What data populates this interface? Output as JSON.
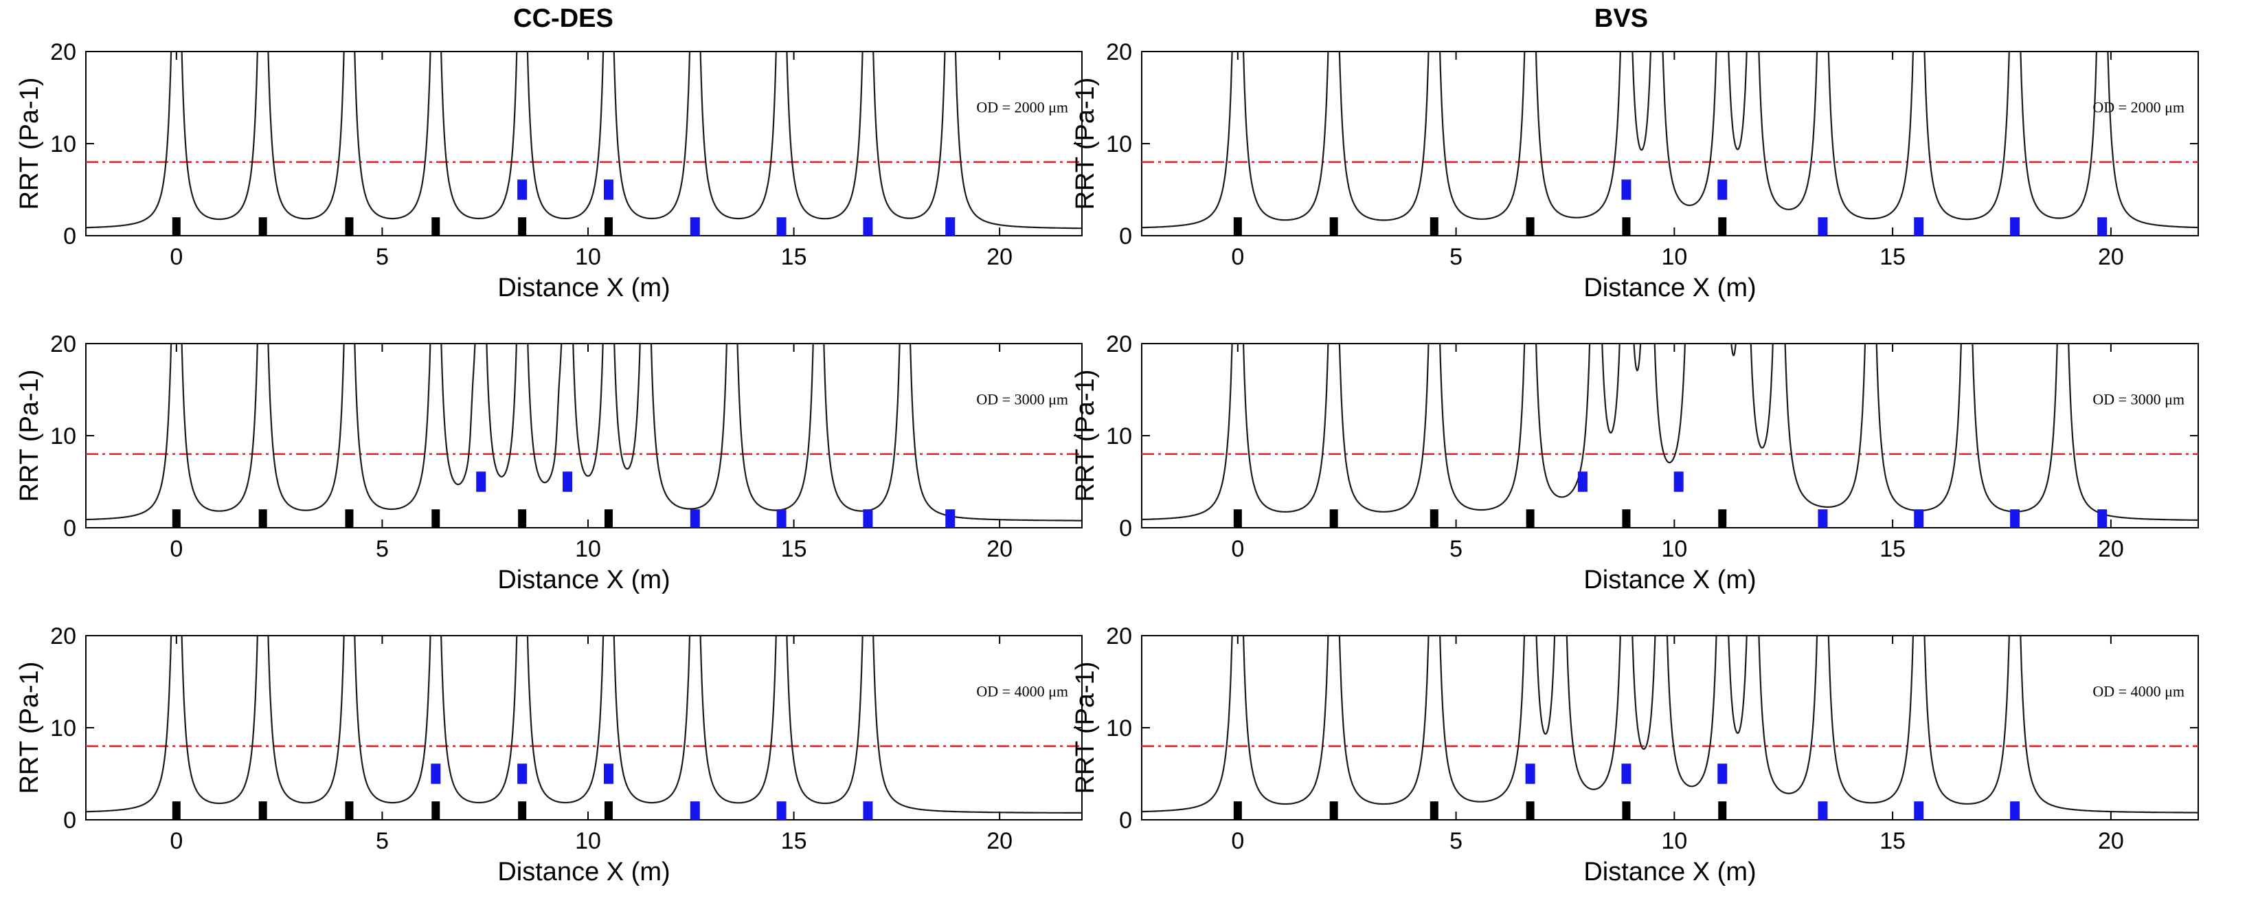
{
  "figure": {
    "col_titles": [
      "CC-DES",
      "BVS"
    ]
  },
  "chart_data": [
    {
      "type": "line",
      "column": "CC-DES",
      "od_label": "OD = 2000 μm",
      "xlabel": "Distance X (m)",
      "ylabel": "RRT (Pa-1)",
      "xlim": [
        -2.2,
        22
      ],
      "ylim": [
        0,
        20
      ],
      "xticks": [
        0,
        5,
        10,
        15,
        20
      ],
      "yticks": [
        0,
        10,
        20
      ],
      "threshold": 8,
      "black_markers": [
        0,
        2.1,
        4.2,
        6.3,
        8.4,
        10.5
      ],
      "blue_low": [
        12.6,
        14.7,
        16.8,
        18.8
      ],
      "blue_high": [
        8.4,
        10.5
      ],
      "blue_high_value": 5,
      "peaks": [
        0,
        2.1,
        4.2,
        6.3,
        8.4,
        10.5,
        12.6,
        14.7,
        16.8,
        18.8
      ],
      "small_bumps": []
    },
    {
      "type": "line",
      "column": "BVS",
      "od_label": "OD = 2000 μm",
      "xlabel": "Distance X (m)",
      "ylabel": "RRT (Pa-1)",
      "xlim": [
        -2.2,
        22
      ],
      "ylim": [
        0,
        20
      ],
      "xticks": [
        0,
        5,
        10,
        15,
        20
      ],
      "yticks": [
        0,
        10,
        20
      ],
      "threshold": 8,
      "black_markers": [
        0,
        2.2,
        4.5,
        6.7,
        8.9,
        11.1
      ],
      "blue_low": [
        13.4,
        15.6,
        17.8,
        19.8
      ],
      "blue_high": [
        8.9,
        11.1
      ],
      "blue_high_value": 5,
      "peaks": [
        0,
        2.2,
        4.5,
        6.7,
        8.9,
        9.6,
        11.1,
        11.8,
        13.4,
        15.6,
        17.8,
        19.8
      ],
      "small_bumps": []
    },
    {
      "type": "line",
      "column": "CC-DES",
      "od_label": "OD = 3000 μm",
      "xlabel": "Distance X (m)",
      "ylabel": "RRT (Pa-1)",
      "xlim": [
        -2.2,
        22
      ],
      "ylim": [
        0,
        20
      ],
      "xticks": [
        0,
        5,
        10,
        15,
        20
      ],
      "yticks": [
        0,
        10,
        20
      ],
      "threshold": 8,
      "black_markers": [
        0,
        2.1,
        4.2,
        6.3,
        8.4,
        10.5
      ],
      "blue_low": [
        12.6,
        14.7,
        16.8,
        18.8
      ],
      "blue_high": [
        7.4,
        9.5
      ],
      "blue_high_value": 5,
      "peaks": [
        0,
        2.1,
        4.2,
        6.3,
        7.4,
        8.4,
        9.5,
        10.5,
        11.4,
        13.5,
        15.6,
        17.7
      ],
      "small_bumps": [
        7.2,
        9.3
      ]
    },
    {
      "type": "line",
      "column": "BVS",
      "od_label": "OD = 3000 μm",
      "xlabel": "Distance X (m)",
      "ylabel": "RRT (Pa-1)",
      "xlim": [
        -2.2,
        22
      ],
      "ylim": [
        0,
        20
      ],
      "xticks": [
        0,
        5,
        10,
        15,
        20
      ],
      "yticks": [
        0,
        10,
        20
      ],
      "threshold": 8,
      "black_markers": [
        0,
        2.2,
        4.5,
        6.7,
        8.9,
        11.1
      ],
      "blue_low": [
        13.4,
        15.6,
        17.8,
        19.8
      ],
      "blue_high": [
        7.9,
        10.1
      ],
      "blue_high_value": 5,
      "peaks": [
        0,
        2.2,
        4.5,
        6.7,
        8.2,
        8.9,
        9.4,
        10.4,
        10.8,
        11.1,
        11.6,
        12.4,
        14.5,
        16.7,
        18.9
      ],
      "small_bumps": []
    },
    {
      "type": "line",
      "column": "CC-DES",
      "od_label": "OD = 4000 μm",
      "xlabel": "Distance X (m)",
      "ylabel": "RRT (Pa-1)",
      "xlim": [
        -2.2,
        22
      ],
      "ylim": [
        0,
        20
      ],
      "xticks": [
        0,
        5,
        10,
        15,
        20
      ],
      "yticks": [
        0,
        10,
        20
      ],
      "threshold": 8,
      "black_markers": [
        0,
        2.1,
        4.2,
        6.3,
        8.4,
        10.5
      ],
      "blue_low": [
        12.6,
        14.7,
        16.8
      ],
      "blue_high": [
        6.3,
        8.4,
        10.5
      ],
      "blue_high_value": 5,
      "peaks": [
        0,
        2.1,
        4.2,
        6.3,
        8.4,
        10.5,
        12.6,
        14.7,
        16.8
      ],
      "small_bumps": []
    },
    {
      "type": "line",
      "column": "BVS",
      "od_label": "OD = 4000 μm",
      "xlabel": "Distance X (m)",
      "ylabel": "RRT (Pa-1)",
      "xlim": [
        -2.2,
        22
      ],
      "ylim": [
        0,
        20
      ],
      "xticks": [
        0,
        5,
        10,
        15,
        20
      ],
      "yticks": [
        0,
        10,
        20
      ],
      "threshold": 8,
      "black_markers": [
        0,
        2.2,
        4.5,
        6.7,
        8.9,
        11.1
      ],
      "blue_low": [
        13.4,
        15.6,
        17.8
      ],
      "blue_high": [
        6.7,
        8.9,
        11.1
      ],
      "blue_high_value": 5,
      "peaks": [
        0,
        2.2,
        4.5,
        6.7,
        7.4,
        8.9,
        9.7,
        11.1,
        11.8,
        13.4,
        15.6,
        17.8
      ],
      "small_bumps": []
    }
  ]
}
